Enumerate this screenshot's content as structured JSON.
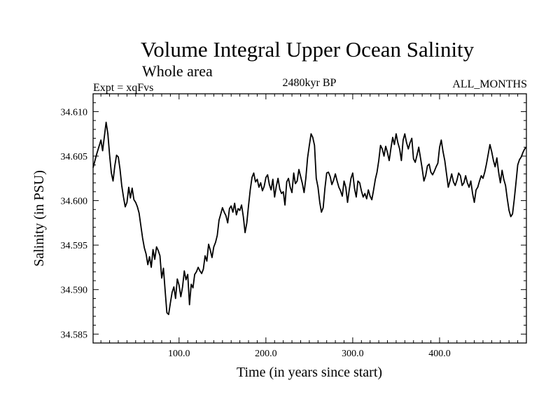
{
  "chart_data": {
    "type": "line",
    "title": "Volume Integral Upper Ocean Salinity",
    "subtitle": "Whole area",
    "annotation_left": "Expt = xqFvs",
    "annotation_center": "2480kyr BP",
    "annotation_right": "ALL_MONTHS",
    "xlabel": "Time (in years since start)",
    "ylabel": "Salinity (in PSU)",
    "xlim": [
      1,
      500
    ],
    "ylim": [
      34.584,
      34.612
    ],
    "x_ticks": [
      100,
      200,
      300,
      400
    ],
    "x_tick_labels": [
      "100.0",
      "200.0",
      "300.0",
      "400.0"
    ],
    "y_ticks": [
      34.585,
      34.59,
      34.595,
      34.6,
      34.605,
      34.61
    ],
    "y_tick_labels": [
      "34.585",
      "34.590",
      "34.595",
      "34.600",
      "34.605",
      "34.610"
    ],
    "grid": false,
    "color": "#000000",
    "series": [
      {
        "name": "salinity",
        "x": [
          1,
          5,
          10,
          12,
          14,
          16,
          18,
          20,
          22,
          24,
          26,
          28,
          30,
          32,
          34,
          36,
          38,
          40,
          42,
          44,
          46,
          48,
          50,
          52,
          54,
          56,
          58,
          60,
          62,
          64,
          66,
          68,
          70,
          72,
          74,
          76,
          78,
          80,
          82,
          84,
          86,
          88,
          90,
          92,
          94,
          96,
          98,
          100,
          102,
          104,
          106,
          108,
          110,
          112,
          114,
          116,
          118,
          120,
          122,
          124,
          126,
          128,
          130,
          132,
          134,
          136,
          138,
          140,
          142,
          144,
          146,
          148,
          150,
          152,
          154,
          156,
          158,
          160,
          162,
          164,
          166,
          168,
          170,
          172,
          174,
          176,
          178,
          180,
          182,
          184,
          186,
          188,
          190,
          192,
          194,
          196,
          198,
          200,
          202,
          204,
          206,
          208,
          210,
          212,
          214,
          216,
          218,
          220,
          222,
          224,
          226,
          228,
          230,
          232,
          234,
          236,
          238,
          240,
          242,
          244,
          246,
          248,
          250,
          252,
          254,
          256,
          258,
          260,
          262,
          264,
          266,
          268,
          270,
          272,
          274,
          276,
          278,
          280,
          282,
          284,
          286,
          288,
          290,
          292,
          294,
          296,
          298,
          300,
          302,
          304,
          306,
          308,
          310,
          312,
          314,
          316,
          318,
          320,
          322,
          324,
          326,
          328,
          330,
          332,
          334,
          336,
          338,
          340,
          342,
          344,
          346,
          348,
          350,
          352,
          354,
          356,
          358,
          360,
          362,
          364,
          366,
          368,
          370,
          372,
          374,
          376,
          378,
          380,
          382,
          384,
          386,
          388,
          390,
          392,
          394,
          396,
          398,
          400,
          402,
          404,
          406,
          408,
          410,
          412,
          414,
          416,
          418,
          420,
          422,
          424,
          426,
          428,
          430,
          432,
          434,
          436,
          438,
          440,
          442,
          444,
          446,
          448,
          450,
          452,
          454,
          456,
          458,
          460,
          462,
          464,
          466,
          468,
          470,
          472,
          474,
          476,
          478,
          480,
          482,
          484,
          486,
          488,
          490,
          492,
          494,
          496,
          498,
          500
        ],
        "y": [
          34.6037,
          34.6052,
          34.6068,
          34.6056,
          34.6072,
          34.6088,
          34.6075,
          34.6051,
          34.6031,
          34.6022,
          34.6039,
          34.6051,
          34.6049,
          34.6035,
          34.6017,
          34.6004,
          34.5993,
          34.5998,
          34.6015,
          34.6003,
          34.6014,
          34.6001,
          34.5998,
          34.5993,
          34.5986,
          34.5972,
          34.5958,
          34.5947,
          34.594,
          34.5928,
          34.5937,
          34.5925,
          34.5945,
          34.5934,
          34.5948,
          34.5944,
          34.5938,
          34.5913,
          34.5924,
          34.5898,
          34.5874,
          34.5872,
          34.5885,
          34.5897,
          34.5903,
          34.589,
          34.5912,
          34.5905,
          34.5892,
          34.5903,
          34.5921,
          34.5911,
          34.5917,
          34.5883,
          34.5906,
          34.5902,
          34.5917,
          34.592,
          34.5925,
          34.5921,
          34.5918,
          34.5923,
          34.5938,
          34.5932,
          34.5951,
          34.5944,
          34.5936,
          34.5948,
          34.5953,
          34.5961,
          34.5978,
          34.5985,
          34.5992,
          34.5987,
          34.5983,
          34.5975,
          34.5991,
          34.5994,
          34.5987,
          34.5997,
          34.5984,
          34.5991,
          34.5989,
          34.5995,
          34.5982,
          34.5964,
          34.5975,
          34.5994,
          34.6012,
          34.6026,
          34.6031,
          34.6021,
          34.6024,
          34.6015,
          34.602,
          34.6011,
          34.6016,
          34.6026,
          34.6029,
          34.6018,
          34.6012,
          34.6024,
          34.6004,
          34.6016,
          34.6025,
          34.6013,
          34.6008,
          34.601,
          34.5995,
          34.6021,
          34.6025,
          34.6015,
          34.6009,
          34.6031,
          34.6019,
          34.6022,
          34.6035,
          34.6027,
          34.6019,
          34.6009,
          34.6025,
          34.6048,
          34.6062,
          34.6075,
          34.6071,
          34.6062,
          34.6025,
          34.6015,
          34.5998,
          34.5987,
          34.5992,
          34.6014,
          34.6031,
          34.6032,
          34.6027,
          34.6018,
          34.6023,
          34.603,
          34.6022,
          34.6015,
          34.6011,
          34.6005,
          34.6022,
          34.6015,
          34.5998,
          34.6012,
          34.6025,
          34.6031,
          34.6014,
          34.6004,
          34.6022,
          34.602,
          34.6011,
          34.6004,
          34.6008,
          34.6002,
          34.6012,
          34.6005,
          34.6001,
          34.6012,
          34.6024,
          34.6032,
          34.6045,
          34.6062,
          34.6058,
          34.605,
          34.6061,
          34.6054,
          34.6045,
          34.6059,
          34.6071,
          34.6063,
          34.6075,
          34.6065,
          34.6058,
          34.6045,
          34.6068,
          34.6075,
          34.6065,
          34.6058,
          34.6065,
          34.607,
          34.6047,
          34.6043,
          34.6051,
          34.606,
          34.6048,
          34.6036,
          34.6022,
          34.6028,
          34.6039,
          34.6041,
          34.6032,
          34.6029,
          34.6033,
          34.6038,
          34.6042,
          34.606,
          34.6068,
          34.6055,
          34.6045,
          34.603,
          34.6015,
          34.6022,
          34.603,
          34.6021,
          34.6017,
          34.6023,
          34.6031,
          34.6028,
          34.6017,
          34.602,
          34.6028,
          34.602,
          34.6015,
          34.6022,
          34.6008,
          34.5998,
          34.6012,
          34.6015,
          34.6022,
          34.6028,
          34.6025,
          34.6032,
          34.6041,
          34.6052,
          34.6063,
          34.6055,
          34.6045,
          34.6038,
          34.6048,
          34.6032,
          34.602,
          34.6034,
          34.6024,
          34.6017,
          34.6002,
          34.5989,
          34.5982,
          34.5985,
          34.6001,
          34.602,
          34.604,
          34.6046,
          34.6049,
          34.6054,
          34.6058,
          34.606
        ]
      }
    ]
  }
}
